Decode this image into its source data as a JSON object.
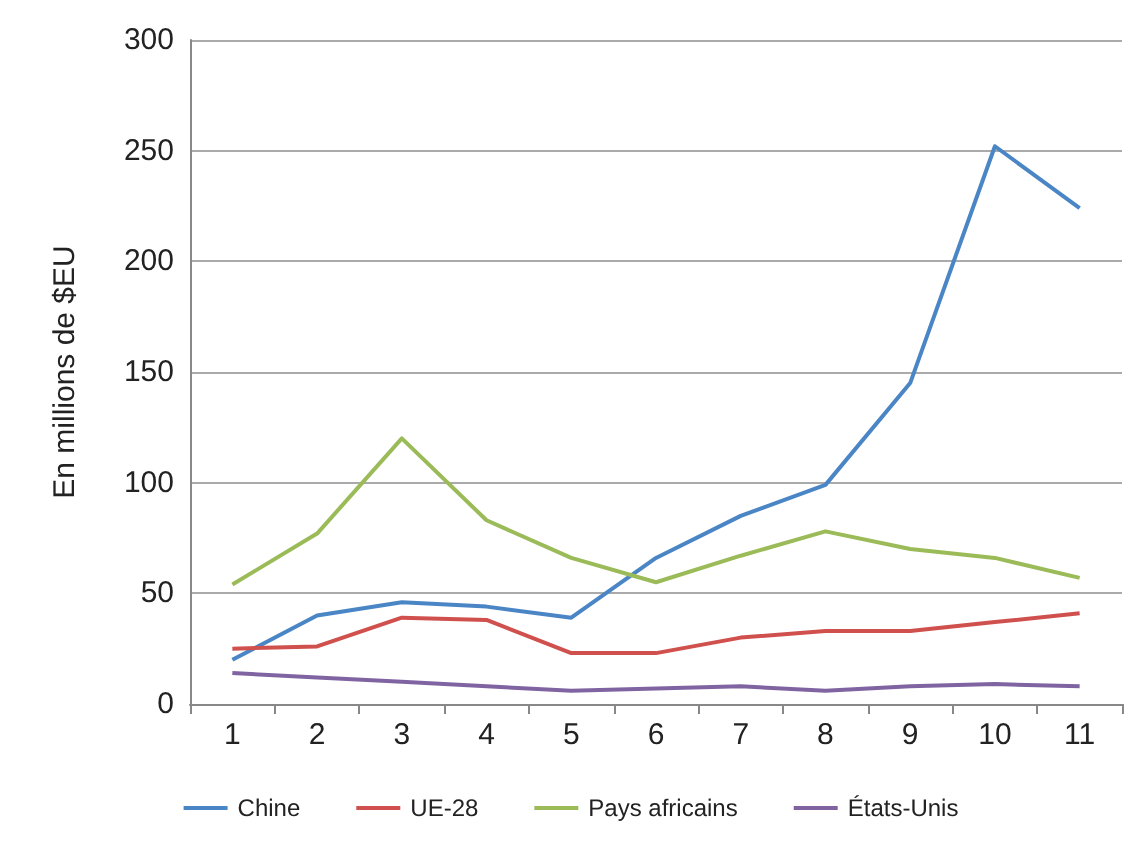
{
  "chart_data": {
    "type": "line",
    "ylabel": "En millions de $EU",
    "categories": [
      "1",
      "2",
      "3",
      "4",
      "5",
      "6",
      "7",
      "8",
      "9",
      "10",
      "11"
    ],
    "series": [
      {
        "name": "Chine",
        "color": "#4a86c5",
        "values": [
          20,
          40,
          46,
          44,
          39,
          66,
          85,
          99,
          145,
          252,
          224
        ]
      },
      {
        "name": "UE-28",
        "color": "#d0504d",
        "values": [
          25,
          26,
          39,
          38,
          23,
          23,
          30,
          33,
          33,
          37,
          41
        ]
      },
      {
        "name": "Pays africains",
        "color": "#9bbb59",
        "values": [
          54,
          77,
          120,
          83,
          66,
          55,
          67,
          78,
          70,
          66,
          57
        ]
      },
      {
        "name": "États-Unis",
        "color": "#8064a2",
        "values": [
          14,
          12,
          10,
          8,
          6,
          7,
          8,
          6,
          8,
          9,
          8
        ]
      }
    ],
    "ylim": [
      0,
      300
    ],
    "yticks": [
      0,
      50,
      100,
      150,
      200,
      250,
      300
    ],
    "grid": "y",
    "legend": "bottom",
    "marker": "none",
    "line_style": "solid"
  }
}
